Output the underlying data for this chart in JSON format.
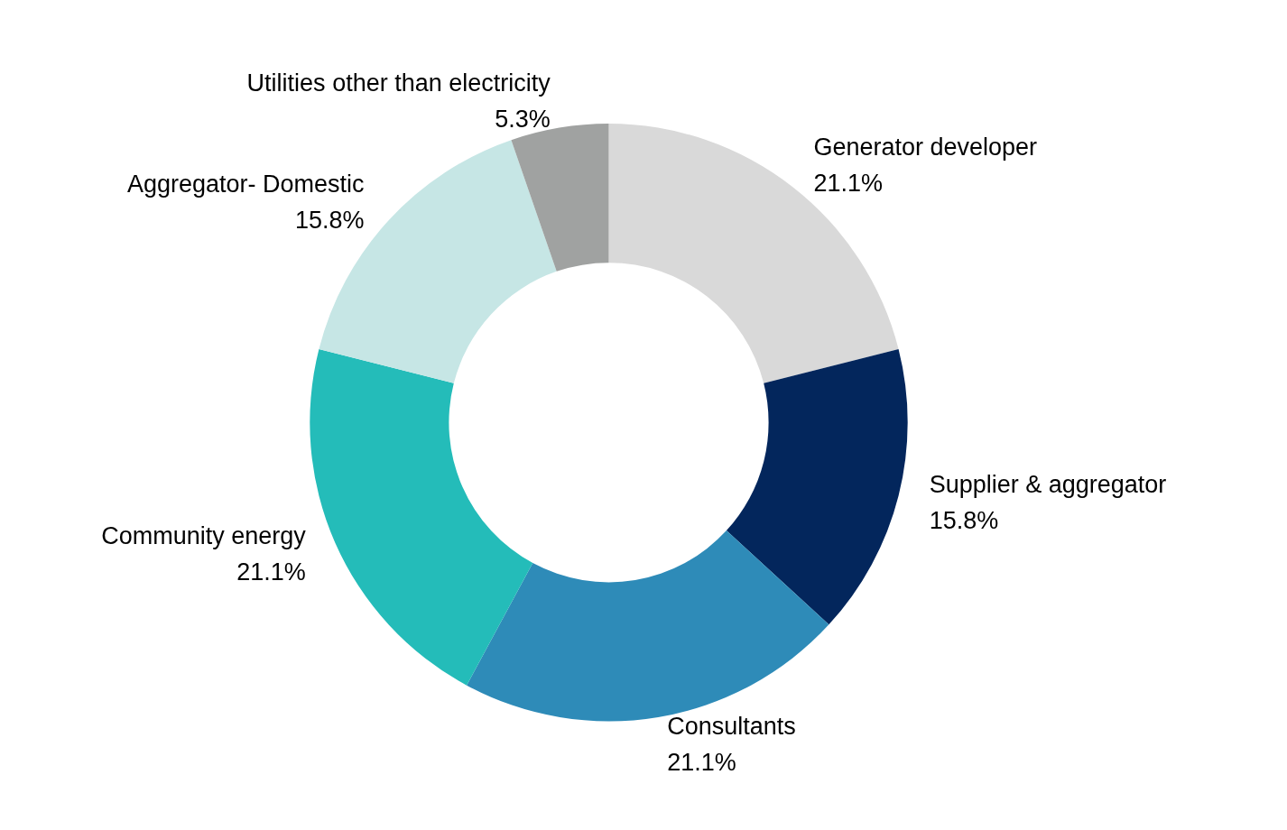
{
  "chart_data": {
    "type": "donut",
    "categories": [
      "Generator developer",
      "Supplier & aggregator",
      "Consultants",
      "Community energy",
      "Aggregator- Domestic",
      "Utilities other than electricity"
    ],
    "values": [
      21.1,
      15.8,
      21.1,
      21.1,
      15.8,
      5.3
    ],
    "value_labels": [
      "21.1%",
      "15.8%",
      "21.1%",
      "21.1%",
      "15.8%",
      "5.3%"
    ],
    "colors": [
      "#d9d9d9",
      "#03265c",
      "#2e8bb8",
      "#24bcb9",
      "#c6e6e5",
      "#a0a2a1"
    ],
    "legend": false
  }
}
